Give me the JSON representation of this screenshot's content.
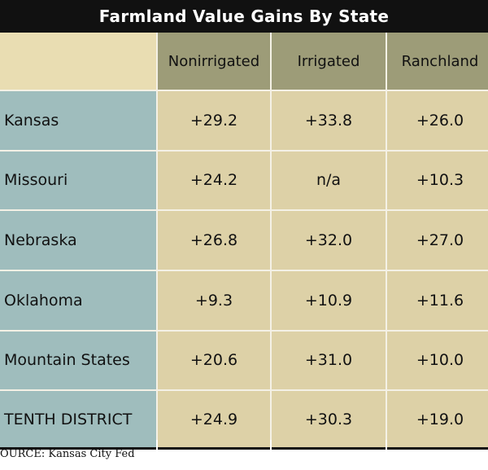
{
  "chart_data": {
    "type": "table",
    "title": "Farmland Value Gains By State",
    "columns": [
      "Nonirrigated",
      "Irrigated",
      "Ranchland"
    ],
    "rows": [
      {
        "label": "Kansas",
        "values": [
          "+29.2",
          "+33.8",
          "+26.0"
        ]
      },
      {
        "label": "Missouri",
        "values": [
          "+24.2",
          "n/a",
          "+10.3"
        ]
      },
      {
        "label": "Nebraska",
        "values": [
          "+26.8",
          "+32.0",
          "+27.0"
        ]
      },
      {
        "label": "Oklahoma",
        "values": [
          "+9.3",
          "+10.9",
          "+11.6"
        ]
      },
      {
        "label": "Mountain States",
        "values": [
          "+20.6",
          "+31.0",
          "+10.0"
        ]
      },
      {
        "label": "TENTH DISTRICT",
        "values": [
          "+24.9",
          "+30.3",
          "+19.0"
        ]
      }
    ],
    "source": "OURCE: Kansas City Fed"
  },
  "colors": {
    "title_bg": "#111111",
    "header_bg": "#9d9c78",
    "row_label_bg": "#9fbdbd",
    "value_bg": "#ddd1a7"
  }
}
